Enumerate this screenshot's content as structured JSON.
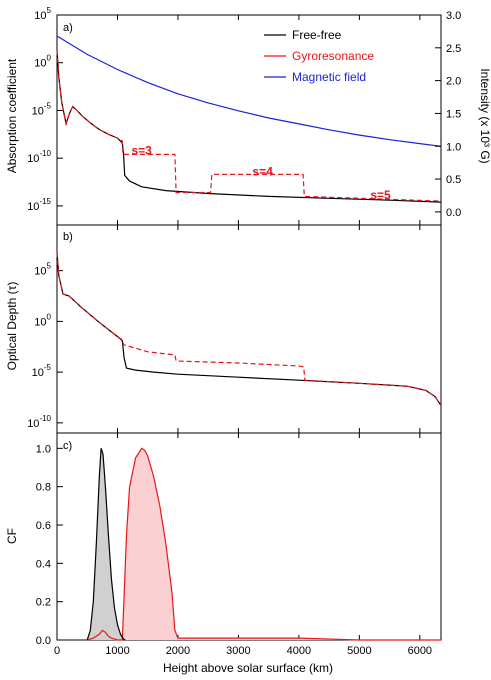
{
  "colors": {
    "free_free": "#000000",
    "gyro": "#e8141b",
    "magnetic": "#1a22d8",
    "ff_fill": "#d0d0d0",
    "gyro_fill": "#fad0d3"
  },
  "xlabel": "Height above solar surface (km)",
  "x_ticks": [
    "0",
    "1000",
    "2000",
    "3000",
    "4000",
    "5000",
    "6000"
  ],
  "chart_data": [
    {
      "panel": "a)",
      "type": "line",
      "ylabel": "Absorption coefficient",
      "ylabel_right": "Intensity (x 10³ G)",
      "y_scale": "log",
      "ylim_log10": [
        -17,
        5
      ],
      "y_ticks": [
        {
          "mant": "10",
          "exp": "5",
          "v": 5
        },
        {
          "mant": "10",
          "exp": "0",
          "v": 0
        },
        {
          "mant": "10",
          "exp": "-5",
          "v": -5
        },
        {
          "mant": "10",
          "exp": "-10",
          "v": -10
        },
        {
          "mant": "10",
          "exp": "-15",
          "v": -15
        }
      ],
      "y2lim": [
        -0.2,
        3.0
      ],
      "y2_ticks": [
        "0.0",
        "0.5",
        "1.0",
        "1.5",
        "2.0",
        "2.5",
        "3.0"
      ],
      "legend": [
        "Free-free",
        "Gyroresonance",
        "Magnetic field"
      ],
      "legend_placement": "top-right",
      "annotations": [
        {
          "text": "s=3",
          "x": 1400,
          "y": -9.6
        },
        {
          "text": "s=4",
          "x": 3400,
          "y": -11.8
        },
        {
          "text": "s=5",
          "x": 5350,
          "y": -14.3
        }
      ],
      "series": [
        {
          "name": "Free-free",
          "x": [
            0,
            30,
            80,
            150,
            200,
            260,
            330,
            420,
            550,
            700,
            850,
            1000,
            1080,
            1100,
            1120,
            1200,
            1400,
            1800,
            2500,
            3500,
            4500,
            5500,
            6350
          ],
          "y": [
            1.3,
            -1.5,
            -4.2,
            -6.4,
            -5.4,
            -4.6,
            -5.0,
            -5.6,
            -6.3,
            -7.0,
            -7.5,
            -7.9,
            -8.4,
            -9.5,
            -11.8,
            -12.4,
            -13.0,
            -13.4,
            -13.7,
            -14.0,
            -14.2,
            -14.4,
            -14.6
          ]
        },
        {
          "name": "Gyroresonance",
          "x": [
            0,
            30,
            80,
            150,
            200,
            260,
            330,
            420,
            550,
            700,
            850,
            1000,
            1080,
            1090,
            1950,
            1970,
            2540,
            2560,
            4070,
            4090,
            6350
          ],
          "y": [
            1.3,
            -1.5,
            -4.2,
            -6.4,
            -5.4,
            -4.6,
            -5.0,
            -5.6,
            -6.3,
            -7.0,
            -7.5,
            -7.9,
            -8.2,
            -9.6,
            -9.6,
            -13.6,
            -13.6,
            -11.7,
            -11.7,
            -14.0,
            -14.5
          ]
        },
        {
          "name": "Magnetic field",
          "x": [
            0,
            500,
            1000,
            1500,
            2000,
            2500,
            3000,
            3500,
            4000,
            4500,
            5000,
            5500,
            6000,
            6350
          ],
          "y2": [
            2.68,
            2.4,
            2.17,
            1.97,
            1.8,
            1.66,
            1.54,
            1.43,
            1.34,
            1.25,
            1.17,
            1.1,
            1.04,
            1.0
          ]
        }
      ]
    },
    {
      "panel": "b)",
      "type": "line",
      "ylabel": "Optical Depth (τ)",
      "y_scale": "log",
      "ylim_log10": [
        -11,
        9.5
      ],
      "y_ticks": [
        {
          "mant": "10",
          "exp": "5",
          "v": 5
        },
        {
          "mant": "10",
          "exp": "0",
          "v": 0
        },
        {
          "mant": "10",
          "exp": "-5",
          "v": -5
        },
        {
          "mant": "10",
          "exp": "-10",
          "v": -10
        }
      ],
      "series": [
        {
          "name": "Free-free",
          "x": [
            0,
            30,
            100,
            200,
            400,
            700,
            1000,
            1080,
            1110,
            1150,
            1300,
            1600,
            2000,
            3000,
            4000,
            5000,
            5800,
            6100,
            6250,
            6350
          ],
          "y": [
            6.8,
            4.5,
            2.7,
            2.5,
            1.4,
            -0.1,
            -1.5,
            -1.9,
            -3.6,
            -4.6,
            -4.8,
            -5.0,
            -5.2,
            -5.5,
            -5.8,
            -6.1,
            -6.4,
            -6.8,
            -7.4,
            -8.3
          ]
        },
        {
          "name": "Gyroresonance",
          "x": [
            0,
            30,
            100,
            200,
            400,
            700,
            1000,
            1080,
            1100,
            1500,
            1800,
            1950,
            1970,
            3000,
            4000,
            4080,
            4100,
            5000,
            5800,
            6100,
            6250,
            6350
          ],
          "y": [
            6.8,
            4.5,
            2.7,
            2.5,
            1.4,
            -0.1,
            -1.5,
            -1.8,
            -2.3,
            -3.0,
            -3.2,
            -3.3,
            -3.9,
            -4.1,
            -4.4,
            -4.5,
            -5.8,
            -6.1,
            -6.4,
            -6.8,
            -7.4,
            -8.3
          ]
        }
      ]
    },
    {
      "panel": "c)",
      "type": "area",
      "ylabel": "CF",
      "ylim": [
        0,
        1.08
      ],
      "y_ticks": [
        "0.0",
        "0.2",
        "0.4",
        "0.6",
        "0.8",
        "1.0"
      ],
      "series": [
        {
          "name": "Free-free",
          "x": [
            500,
            550,
            600,
            650,
            700,
            730,
            760,
            800,
            850,
            900,
            950,
            1000,
            1050,
            1100,
            1130
          ],
          "y": [
            0.0,
            0.05,
            0.2,
            0.5,
            0.85,
            1.0,
            0.97,
            0.8,
            0.55,
            0.32,
            0.17,
            0.08,
            0.03,
            0.005,
            0.0
          ]
        },
        {
          "name": "Gyroresonance",
          "x": [
            500,
            600,
            700,
            750,
            800,
            850,
            900,
            1000,
            1080,
            1100,
            1150,
            1200,
            1300,
            1400,
            1450,
            1500,
            1600,
            1700,
            1800,
            1900,
            1950,
            2000,
            3000,
            4000,
            5000,
            6000,
            6350
          ],
          "y": [
            0.0,
            0.01,
            0.03,
            0.05,
            0.04,
            0.02,
            0.01,
            0.0,
            0.0,
            0.15,
            0.55,
            0.8,
            0.95,
            1.0,
            0.99,
            0.96,
            0.85,
            0.7,
            0.5,
            0.25,
            0.05,
            0.01,
            0.01,
            0.01,
            0.0,
            0.0,
            0.0
          ]
        }
      ]
    }
  ]
}
